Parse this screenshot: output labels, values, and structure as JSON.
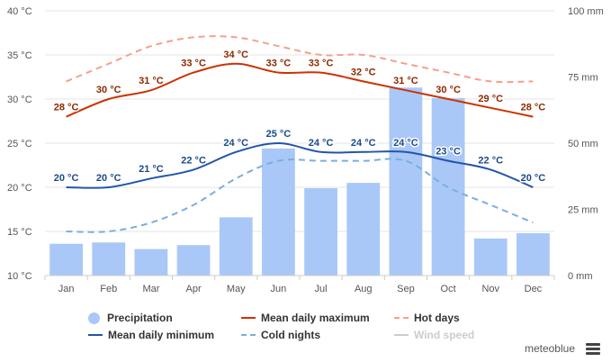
{
  "chart_data": {
    "type": "bar-line-combo",
    "categories": [
      "Jan",
      "Feb",
      "Mar",
      "Apr",
      "May",
      "Jun",
      "Jul",
      "Aug",
      "Sep",
      "Oct",
      "Nov",
      "Dec"
    ],
    "left_axis": {
      "ticks": [
        10,
        15,
        20,
        25,
        30,
        35,
        40
      ],
      "tick_labels": [
        "10 °C",
        "15 °C",
        "20 °C",
        "25 °C",
        "30 °C",
        "35 °C",
        "40 °C"
      ],
      "range": [
        10,
        40
      ]
    },
    "right_axis": {
      "ticks": [
        0,
        25,
        50,
        75,
        100
      ],
      "tick_labels": [
        "0 mm",
        "25 mm",
        "50 mm",
        "75 mm",
        "100 mm"
      ],
      "range": [
        0,
        100
      ]
    },
    "series": [
      {
        "name": "Precipitation",
        "type": "bar",
        "axis": "right",
        "color": "#a9c8f8",
        "values": [
          12,
          12.5,
          10,
          11.5,
          22,
          48,
          33,
          35,
          71,
          67,
          14,
          16
        ]
      },
      {
        "name": "Mean daily maximum",
        "type": "line",
        "axis": "left",
        "color": "#cc3300",
        "values": [
          28,
          30,
          31,
          33,
          34,
          33,
          33,
          32,
          31,
          30,
          29,
          28
        ],
        "labels": [
          "28 °C",
          "30 °C",
          "31 °C",
          "33 °C",
          "34 °C",
          "33 °C",
          "33 °C",
          "32 °C",
          "31 °C",
          "30 °C",
          "29 °C",
          "28 °C"
        ]
      },
      {
        "name": "Mean daily minimum",
        "type": "line",
        "axis": "left",
        "color": "#2255aa",
        "values": [
          20,
          20,
          21,
          22,
          24,
          25,
          24,
          24,
          24,
          23,
          22,
          20
        ],
        "labels": [
          "20 °C",
          "20 °C",
          "21 °C",
          "22 °C",
          "24 °C",
          "25 °C",
          "24 °C",
          "24 °C",
          "24 °C",
          "23 °C",
          "22 °C",
          "20 °C"
        ]
      },
      {
        "name": "Hot days",
        "type": "dashed-line",
        "axis": "left",
        "color": "#f5a08a",
        "values": [
          32,
          34,
          36,
          37,
          37,
          36,
          35,
          35,
          34,
          33,
          32,
          32
        ]
      },
      {
        "name": "Cold nights",
        "type": "dashed-line",
        "axis": "left",
        "color": "#7aaee0",
        "values": [
          15,
          15,
          16,
          18,
          21,
          23,
          23,
          23,
          23,
          20,
          18,
          16
        ]
      }
    ],
    "legend": {
      "items": [
        "Precipitation",
        "Mean daily maximum",
        "Hot days",
        "Mean daily minimum",
        "Cold nights",
        "Wind speed"
      ],
      "disabled": [
        "Wind speed"
      ],
      "position": "bottom"
    }
  },
  "legend_labels": {
    "precipitation": "Precipitation",
    "mean_max": "Mean daily maximum",
    "hot_days": "Hot days",
    "mean_min": "Mean daily minimum",
    "cold_nights": "Cold nights",
    "wind_speed": "Wind speed"
  },
  "brand": "meteoblue",
  "colors": {
    "precip": "#a9c8f8",
    "max": "#cc3300",
    "max_label": "#8b2a00",
    "min": "#2255aa",
    "min_label": "#1a4a8a",
    "hot": "#f5a08a",
    "cold": "#7aaee0",
    "disabled": "#cccccc",
    "grid": "#e6e6e6"
  }
}
